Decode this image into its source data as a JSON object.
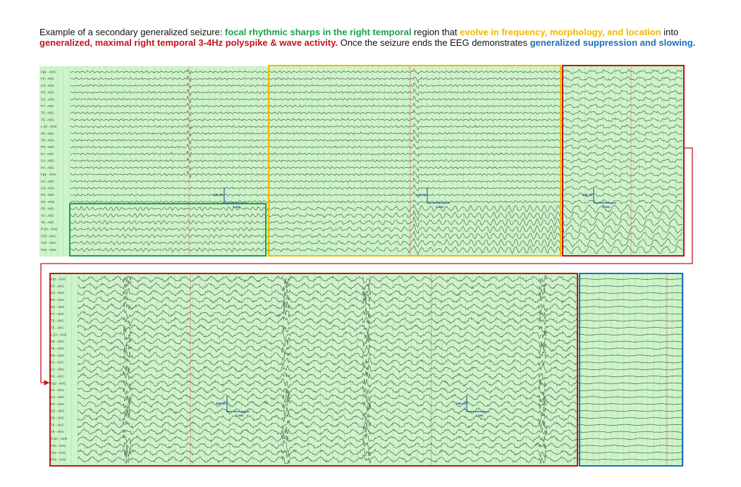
{
  "caption": {
    "segments": [
      {
        "text": "Example of a secondary generalized seizure: ",
        "color": "#111111",
        "bold": false
      },
      {
        "text": "focal rhythmic sharps in the right temporal",
        "color": "#1aa34a",
        "bold": true
      },
      {
        "text": " region that ",
        "color": "#111111",
        "bold": false
      },
      {
        "text": "evolve in frequency, morphology, and location",
        "color": "#f2b800",
        "bold": true
      },
      {
        "text": " into ",
        "color": "#111111",
        "bold": false
      },
      {
        "text": "generalized, maximal right temporal 3-4Hz polyspike & wave activity.",
        "color": "#c0151b",
        "bold": true
      },
      {
        "text": " Once the seizure ends the EEG demonstrates ",
        "color": "#111111",
        "bold": false
      },
      {
        "text": "generalized suppression and slowing.",
        "color": "#1a6fc1",
        "bold": true
      }
    ]
  },
  "colors": {
    "paper": "#cdf5c9",
    "trace": "#3b3b3b",
    "grid": "#9fbf9c",
    "marker": "#e08a8a",
    "scale": "#1f3fa0",
    "focal": "#1aa34a",
    "evolve": "#f2b800",
    "generalized": "#c0151b",
    "postictal": "#1a6fc1"
  },
  "montage_top": [
    "Fp1 - AVG",
    "F3 - AVG",
    "C3 - AVG",
    "P3 - AVG",
    "O1 - AVG",
    "F7 - AVG",
    "T3 - AVG",
    "T5 - AVG",
    "L ZA - AVG",
    "F9 - AVG",
    "T9 - AVG",
    "P9 - AVG",
    "Fz - AVG",
    "Cz - AVG",
    "Pz - AVG",
    "Fp2 - AVG",
    "F4 - AVG",
    "C4 - AVG",
    "P4 - AVG",
    "O2 - AVG",
    "F8 - AVG",
    "T4 - AVG",
    "T6 - AVG",
    "R ZA - AVG",
    "F10 - AVG",
    "T10 - AVG",
    "P10 - AVG"
  ],
  "montage_bottom": [
    "Fp1 - AVG",
    "F3 - AVG",
    "C3 - AVG",
    "P3 - AVG",
    "O1 - AVG",
    "F7 - AVG",
    "T3 - AVG",
    "T5 - AVG",
    "L ZA - AVG",
    "F9 - AVG",
    "T9 - AVG",
    "P9 - AVG",
    "Fz - AVG",
    "Cz - AVG",
    "Pz - AVG",
    "Fp2 - AVG",
    "F4 - AVG",
    "C4 - AVG",
    "P4 - AVG",
    "O2 - AVG",
    "F8 - AVG",
    "T4 - AVG",
    "T6 - AVG",
    "R ZA - AVG",
    "F10 - AVG",
    "T10 - AVG",
    "P10 - AVG"
  ],
  "scale": {
    "amplitude": "140 uV",
    "time": "1 sec"
  }
}
